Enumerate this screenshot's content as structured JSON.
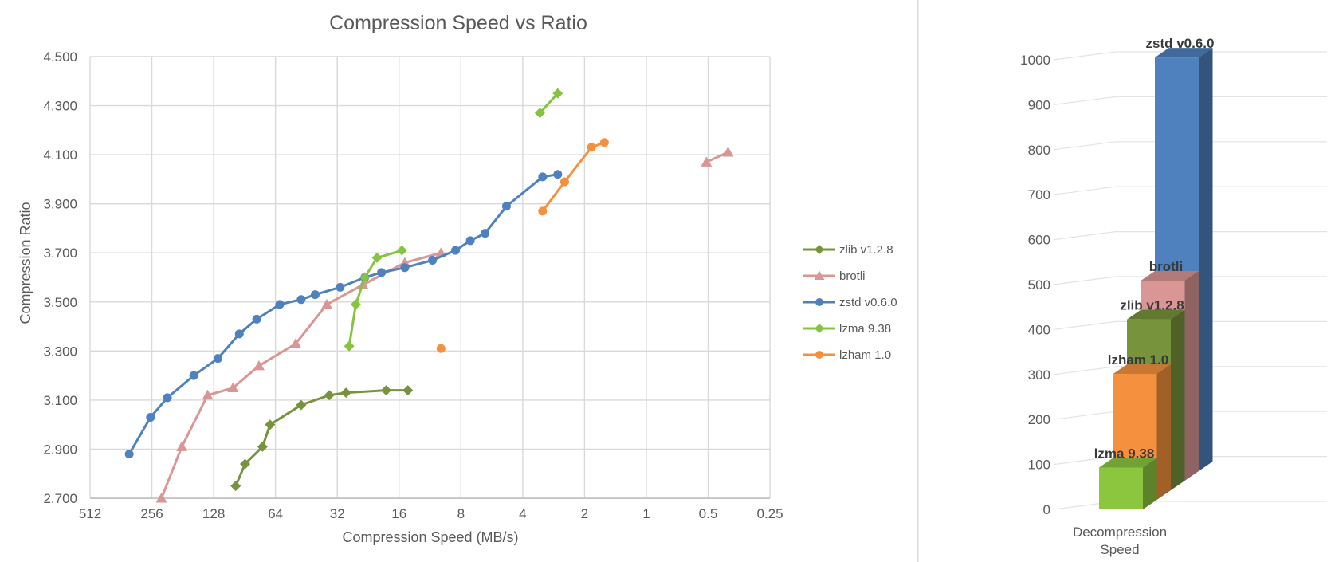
{
  "left_chart": {
    "title": "Compression Speed vs Ratio",
    "x_axis_title": "Compression Speed (MB/s)",
    "y_axis_title": "Compression Ratio",
    "x_tick_labels": [
      "512",
      "256",
      "128",
      "64",
      "32",
      "16",
      "8",
      "4",
      "2",
      "1",
      "0.5",
      "0.25"
    ],
    "y_tick_labels": [
      "2.700",
      "2.900",
      "3.100",
      "3.300",
      "3.500",
      "3.700",
      "3.900",
      "4.100",
      "4.300",
      "4.500"
    ],
    "legend_items": [
      "zlib v1.2.8",
      "brotli",
      "zstd v0.6.0",
      "lzma 9.38",
      "lzham 1.0"
    ]
  },
  "right_chart": {
    "x_axis_label": [
      "Decompression",
      "Speed"
    ],
    "y_tick_labels": [
      "0",
      "100",
      "200",
      "300",
      "400",
      "500",
      "600",
      "700",
      "800",
      "900",
      "1000"
    ]
  },
  "chart_data": [
    {
      "type": "line",
      "title": "Compression Speed vs Ratio",
      "xlabel": "Compression Speed (MB/s)",
      "ylabel": "Compression Ratio",
      "x_scale": "log2-reversed",
      "x_ticks": [
        512,
        256,
        128,
        64,
        32,
        16,
        8,
        4,
        2,
        1,
        0.5,
        0.25
      ],
      "ylim": [
        2.7,
        4.5
      ],
      "y_tick_step": 0.2,
      "grid": true,
      "legend_position": "right",
      "series": [
        {
          "name": "zlib v1.2.8",
          "color": "#77933C",
          "marker": "diamond",
          "segments": [
            [
              [
                100,
                2.75
              ],
              [
                90,
                2.84
              ],
              [
                74,
                2.91
              ],
              [
                68,
                3.0
              ],
              [
                48,
                3.08
              ],
              [
                35,
                3.12
              ],
              [
                29,
                3.13
              ],
              [
                18.5,
                3.14
              ],
              [
                14.5,
                3.14
              ]
            ]
          ]
        },
        {
          "name": "brotli",
          "color": "#D99694",
          "marker": "triangle",
          "segments": [
            [
              [
                230,
                2.7
              ],
              [
                183,
                2.91
              ],
              [
                137,
                3.12
              ],
              [
                103,
                3.15
              ],
              [
                77,
                3.24
              ],
              [
                51,
                3.33
              ],
              [
                36,
                3.49
              ],
              [
                24,
                3.57
              ],
              [
                15,
                3.66
              ],
              [
                10,
                3.7
              ]
            ],
            [
              [
                0.51,
                4.07
              ],
              [
                0.4,
                4.11
              ]
            ]
          ]
        },
        {
          "name": "zstd v0.6.0",
          "color": "#4E81BD",
          "marker": "circle",
          "segments": [
            [
              [
                330,
                2.88
              ],
              [
                260,
                3.03
              ],
              [
                215,
                3.11
              ],
              [
                160,
                3.2
              ],
              [
                122,
                3.27
              ],
              [
                96,
                3.37
              ],
              [
                79,
                3.43
              ],
              [
                61,
                3.49
              ],
              [
                48,
                3.51
              ],
              [
                41,
                3.53
              ],
              [
                31,
                3.56
              ],
              [
                23.5,
                3.6
              ],
              [
                19.5,
                3.62
              ],
              [
                15,
                3.64
              ],
              [
                11,
                3.67
              ],
              [
                8.5,
                3.71
              ],
              [
                7.2,
                3.75
              ],
              [
                6.1,
                3.78
              ],
              [
                4.8,
                3.89
              ],
              [
                3.2,
                4.01
              ],
              [
                2.7,
                4.02
              ]
            ]
          ]
        },
        {
          "name": "lzma 9.38",
          "color": "#84C441",
          "marker": "diamond",
          "segments": [
            [
              [
                28,
                3.32
              ],
              [
                26,
                3.49
              ],
              [
                23.5,
                3.6
              ],
              [
                20.5,
                3.68
              ],
              [
                15.5,
                3.71
              ]
            ],
            [
              [
                3.3,
                4.27
              ],
              [
                2.7,
                4.35
              ]
            ]
          ]
        },
        {
          "name": "lzham 1.0",
          "color": "#F5913E",
          "marker": "circle",
          "segments": [
            [
              [
                10,
                3.31
              ]
            ],
            [
              [
                3.2,
                3.87
              ],
              [
                2.5,
                3.99
              ],
              [
                1.85,
                4.13
              ],
              [
                1.6,
                4.15
              ]
            ]
          ]
        }
      ]
    },
    {
      "type": "bar",
      "variant": "3d-column",
      "xlabel": "Decompression Speed",
      "ylabel": "",
      "ylim": [
        0,
        1000
      ],
      "ytick_step": 100,
      "categories": [
        "lzma 9.38",
        "lzham 1.0",
        "zlib v1.2.8",
        "brotli",
        "zstd v0.6.0"
      ],
      "values": [
        93,
        280,
        380,
        445,
        920
      ],
      "colors": [
        "#8CC63F",
        "#F5913E",
        "#77933C",
        "#D99694",
        "#4E81BD"
      ]
    }
  ],
  "colors": {
    "text": "#595959",
    "grid": "#D9D9D9",
    "grid_right": "#E3E3E3",
    "axis_line": "#BFBFBF",
    "divider": "#D9D9D9",
    "bar_label_text": "#3A3A3A"
  }
}
